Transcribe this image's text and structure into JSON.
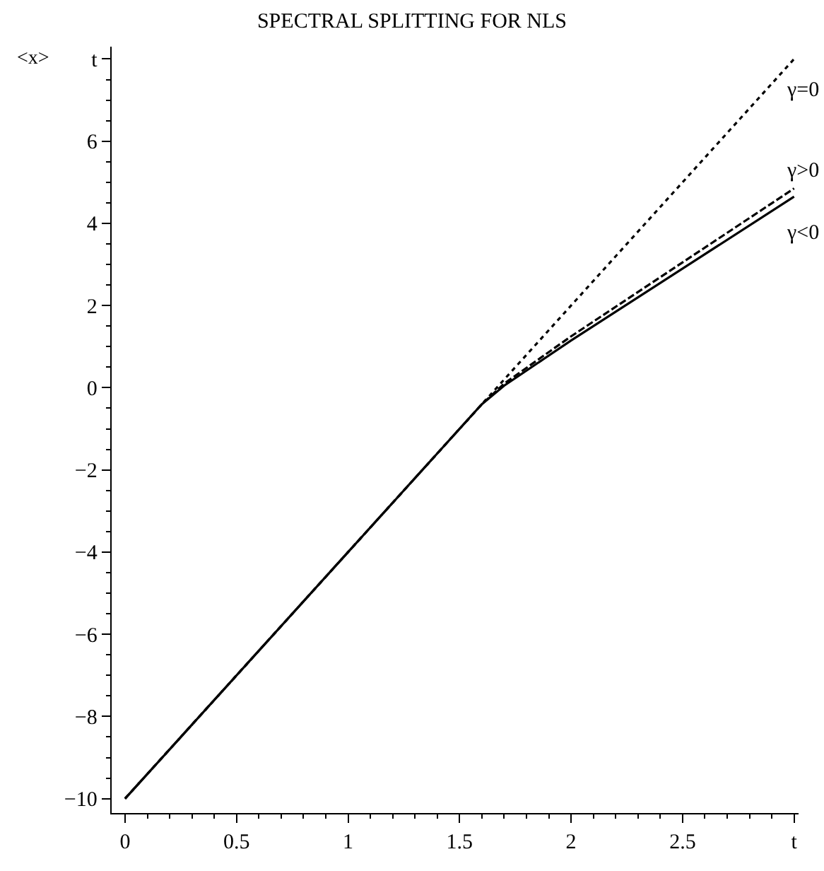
{
  "chart_data": {
    "type": "line",
    "title": "SPECTRAL SPLITTING FOR NLS",
    "ylabel": "<x>",
    "xlim": [
      -0.06,
      3.02
    ],
    "ylim": [
      -10.35,
      8.3
    ],
    "xticks": [
      0,
      0.5,
      1,
      1.5,
      2,
      2.5,
      {
        "value": 3,
        "label": "t"
      }
    ],
    "yticks": [
      -10,
      -8,
      -6,
      -4,
      -2,
      0,
      2,
      4,
      6,
      {
        "value": 8,
        "label": "t"
      }
    ],
    "grid": false,
    "legend": false,
    "marker": "none",
    "series": [
      {
        "name": "γ=0",
        "color": "#000000",
        "line_style": "dotted",
        "x": [
          0,
          1.6,
          3
        ],
        "values": [
          -10,
          -0.4,
          8
        ]
      },
      {
        "name": "γ>0",
        "color": "#000000",
        "line_style": "dashed",
        "x": [
          0,
          1.5,
          1.6,
          1.7,
          2,
          2.5,
          3
        ],
        "values": [
          -10,
          -1,
          -0.4,
          0.1,
          1.25,
          3.05,
          4.85
        ]
      },
      {
        "name": "γ<0",
        "color": "#000000",
        "line_style": "solid",
        "x": [
          0,
          1.5,
          1.6,
          1.7,
          2,
          2.5,
          3
        ],
        "values": [
          -10,
          -1,
          -0.4,
          0.05,
          1.15,
          2.9,
          4.65
        ]
      }
    ]
  }
}
